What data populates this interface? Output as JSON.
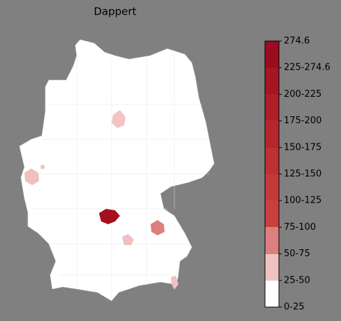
{
  "title": "Dappert",
  "legend": {
    "labels": [
      "0-25",
      "25-50",
      "50-75",
      "75-100",
      "100-125",
      "125-150",
      "150-175",
      "175-200",
      "200-225",
      "225-274.6",
      "274.6"
    ]
  }
}
